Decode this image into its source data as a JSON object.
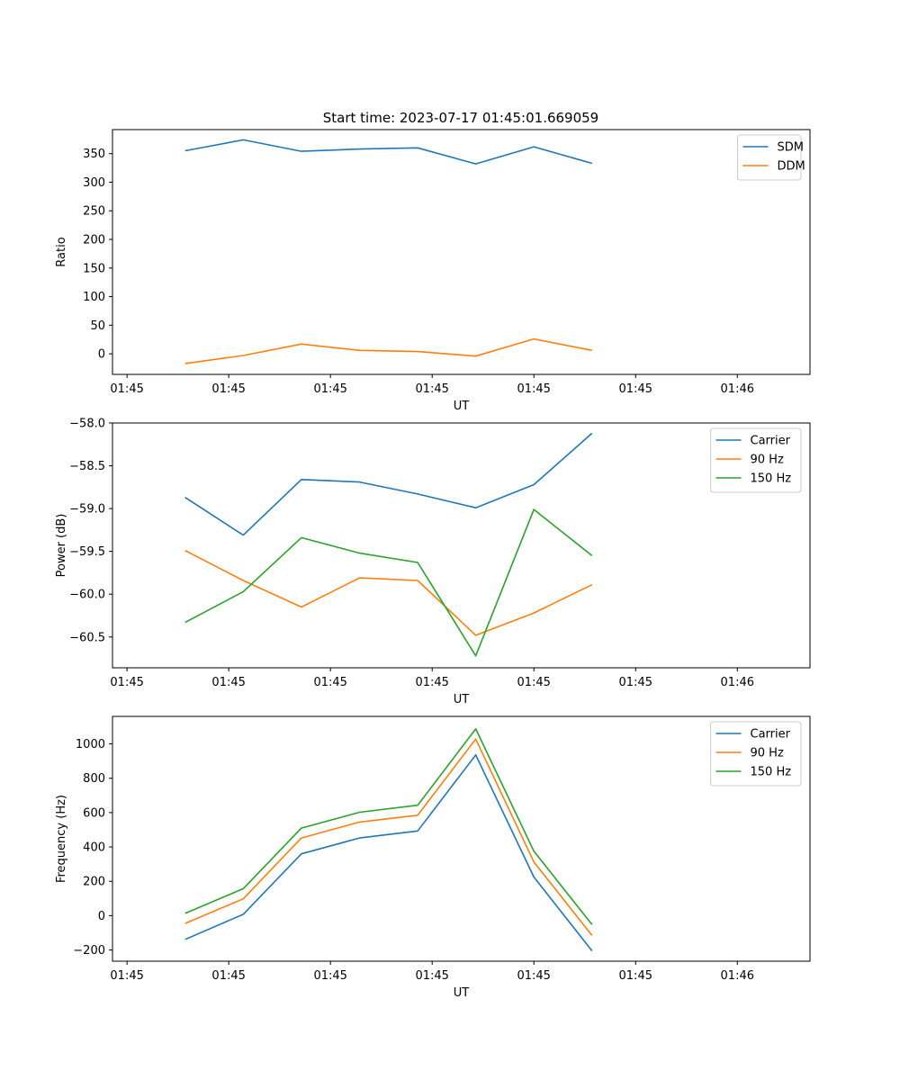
{
  "figure_title": "Start time: 2023-07-17 01:45:01.669059",
  "chart_data": [
    {
      "type": "line",
      "title": "Start time: 2023-07-17 01:45:01.669059",
      "xlabel": "UT",
      "ylabel": "Ratio",
      "x_tick_labels": [
        "01:45",
        "01:45",
        "01:45",
        "01:45",
        "01:45",
        "01:45",
        "01:46"
      ],
      "yticks": [
        0,
        50,
        100,
        150,
        200,
        250,
        300,
        350
      ],
      "ylim": [
        -36,
        392
      ],
      "x": [
        0.5,
        1,
        1.5,
        2,
        2.5,
        3,
        3.5,
        4
      ],
      "xlim": [
        -0.125,
        5.875
      ],
      "legend_position": "top-right",
      "series": [
        {
          "name": "SDM",
          "color": "#1f77b4",
          "values": [
            355,
            374,
            354,
            358,
            360,
            332,
            362,
            333
          ]
        },
        {
          "name": "DDM",
          "color": "#ff7f0e",
          "values": [
            -17,
            -3,
            17,
            6,
            4,
            -4,
            26,
            6
          ]
        }
      ]
    },
    {
      "type": "line",
      "title": "",
      "xlabel": "UT",
      "ylabel": "Power (dB)",
      "x_tick_labels": [
        "01:45",
        "01:45",
        "01:45",
        "01:45",
        "01:45",
        "01:45",
        "01:46"
      ],
      "yticks": [
        -60.5,
        -60.0,
        -59.5,
        -59.0,
        -58.5,
        -58.0
      ],
      "ytick_labels": [
        "−60.5",
        "−60.0",
        "−59.5",
        "−59.0",
        "−58.5",
        "−58.0"
      ],
      "ylim": [
        -60.86,
        -58.0
      ],
      "x": [
        0.5,
        1,
        1.5,
        2,
        2.5,
        3,
        3.5,
        4
      ],
      "xlim": [
        -0.125,
        5.875
      ],
      "legend_position": "top-right",
      "series": [
        {
          "name": "Carrier",
          "color": "#1f77b4",
          "values": [
            -58.87,
            -59.31,
            -58.66,
            -58.69,
            -58.83,
            -58.99,
            -58.72,
            -58.12
          ]
        },
        {
          "name": "90 Hz",
          "color": "#ff7f0e",
          "values": [
            -59.49,
            -59.84,
            -60.15,
            -59.81,
            -59.84,
            -60.48,
            -60.22,
            -59.89
          ]
        },
        {
          "name": "150 Hz",
          "color": "#2ca02c",
          "values": [
            -60.33,
            -59.97,
            -59.34,
            -59.52,
            -59.63,
            -60.72,
            -59.01,
            -59.55
          ]
        }
      ]
    },
    {
      "type": "line",
      "title": "",
      "xlabel": "UT",
      "ylabel": "Frequency (Hz)",
      "x_tick_labels": [
        "01:45",
        "01:45",
        "01:45",
        "01:45",
        "01:45",
        "01:45",
        "01:46"
      ],
      "yticks": [
        -200,
        0,
        200,
        400,
        600,
        800,
        1000
      ],
      "ytick_labels": [
        "−200",
        "0",
        "200",
        "400",
        "600",
        "800",
        "1000"
      ],
      "ylim": [
        -265,
        1160
      ],
      "x": [
        0.5,
        1,
        1.5,
        2,
        2.5,
        3,
        3.5,
        4
      ],
      "xlim": [
        -0.125,
        5.875
      ],
      "legend_position": "top-right",
      "series": [
        {
          "name": "Carrier",
          "color": "#1f77b4",
          "values": [
            -138,
            8,
            360,
            452,
            493,
            936,
            225,
            -205
          ]
        },
        {
          "name": "90 Hz",
          "color": "#ff7f0e",
          "values": [
            -45,
            98,
            452,
            545,
            585,
            1028,
            313,
            -115
          ]
        },
        {
          "name": "150 Hz",
          "color": "#2ca02c",
          "values": [
            13,
            157,
            510,
            602,
            643,
            1087,
            375,
            -52
          ]
        }
      ]
    }
  ]
}
